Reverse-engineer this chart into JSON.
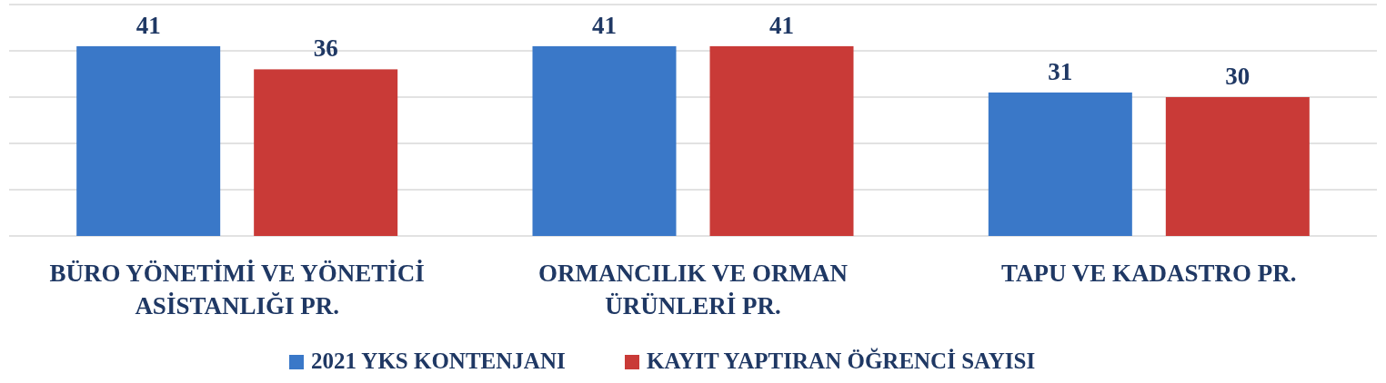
{
  "chart_data": {
    "type": "bar",
    "categories": [
      "BÜRO YÖNETİMİ VE YÖNETİCİ ASİSTANLIĞI PR.",
      "ORMANCILIK VE ORMAN ÜRÜNLERİ PR.",
      "TAPU VE KADASTRO PR."
    ],
    "series": [
      {
        "name": "2021 YKS KONTENJANI",
        "color": "#3a78c8",
        "values": [
          41,
          41,
          31
        ]
      },
      {
        "name": "KAYIT YAPTIRAN ÖĞRENCİ SAYISI",
        "color": "#c93a37",
        "values": [
          36,
          41,
          30
        ]
      }
    ],
    "ylim": [
      0,
      50
    ],
    "yticks": [
      {
        "value": 0,
        "label": null
      },
      {
        "value": 10,
        "label": null
      },
      {
        "value": 20,
        "label": null
      },
      {
        "value": 30,
        "label": null
      },
      {
        "value": 40,
        "label": null
      },
      {
        "value": 50,
        "label": null
      }
    ],
    "grid": "y",
    "tick_labels": "x",
    "data_labels": true,
    "legend": "bottom"
  }
}
